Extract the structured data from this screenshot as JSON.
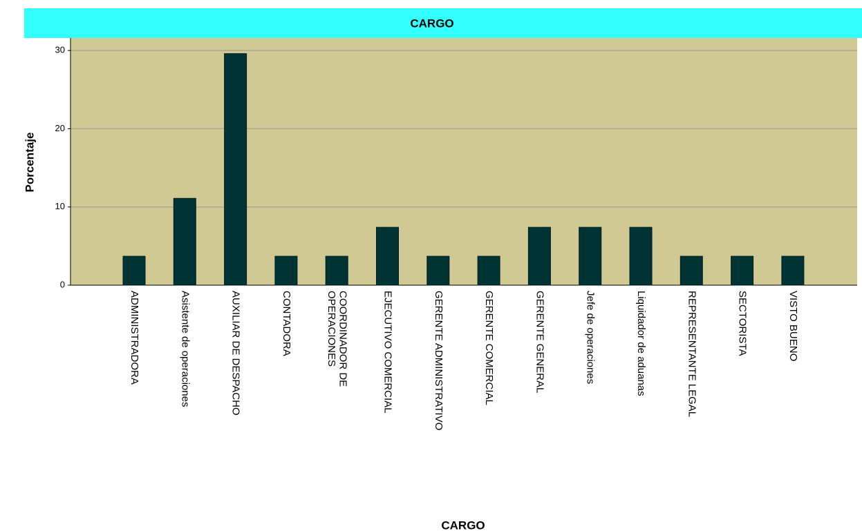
{
  "chart_data": {
    "type": "bar",
    "title": "CARGO",
    "xlabel": "CARGO",
    "ylabel": "Porcentaje",
    "categories": [
      "ADMINISTRADORA",
      "Asistente de operaciones",
      "AUXILIAR DE DESPACHO",
      "CONTADORA",
      "COORDINADOR DE\nOPERACIONES",
      "EJECUTIVO COMERCIAL",
      "GERENTE ADMINISTRATIVO",
      "GERENTE COMERCIAL",
      "GERENTE GENERAL",
      "Jefe de operaciones",
      "Liquidador de aduanas",
      "REPRESENTANTE LEGAL",
      "SECTORISTA",
      "VISTO BUENO"
    ],
    "values": [
      3.7,
      11.1,
      29.6,
      3.7,
      3.7,
      7.4,
      3.7,
      3.7,
      7.4,
      7.4,
      7.4,
      3.7,
      3.7,
      3.7
    ],
    "color": "#003333",
    "ylim": [
      0,
      31.6
    ],
    "yticks": [
      0,
      10,
      20,
      30
    ],
    "grid": true
  }
}
